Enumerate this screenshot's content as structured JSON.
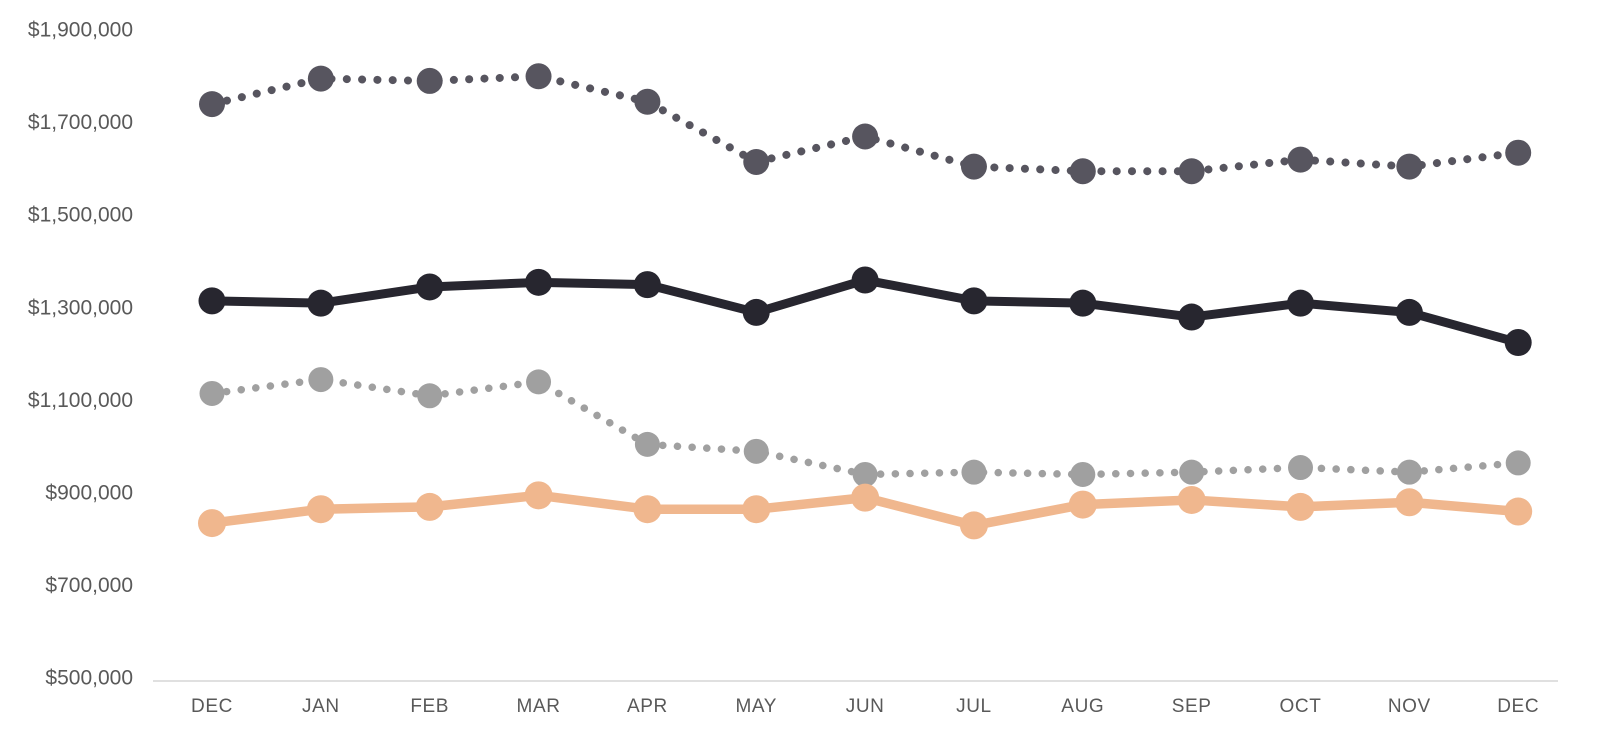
{
  "page": {
    "background_color": "#FFFFFF"
  },
  "axis_style": {
    "axis_line_color": "#D6D6D6",
    "label_color": "#595959"
  },
  "chart_data": {
    "type": "line",
    "title": "",
    "xlabel": "",
    "ylabel": "",
    "grid": false,
    "legend": "none",
    "ylim": [
      500000,
      1900000
    ],
    "y_tick_step": 200000,
    "y_tick_labels": [
      "$1,900,000",
      "$1,700,000",
      "$1,500,000",
      "$1,300,000",
      "$1,100,000",
      "$900,000",
      "$700,000",
      "$500,000"
    ],
    "categories": [
      "DEC",
      "JAN",
      "FEB",
      "MAR",
      "APR",
      "MAY",
      "JUN",
      "JUL",
      "AUG",
      "SEP",
      "OCT",
      "NOV",
      "DEC"
    ],
    "series": [
      {
        "id": "dotted-dark",
        "color": "#57555F",
        "line_style": "dotted",
        "marker": "circle",
        "values": [
          1740000,
          1795000,
          1790000,
          1800000,
          1745000,
          1615000,
          1670000,
          1605000,
          1595000,
          1595000,
          1620000,
          1605000,
          1635000
        ]
      },
      {
        "id": "solid-black",
        "color": "#27262F",
        "line_style": "solid",
        "marker": "circle",
        "values": [
          1315000,
          1310000,
          1345000,
          1355000,
          1350000,
          1290000,
          1360000,
          1315000,
          1310000,
          1280000,
          1310000,
          1290000,
          1225000
        ]
      },
      {
        "id": "dotted-gray",
        "color": "#A0A0A0",
        "line_style": "dotted",
        "marker": "circle",
        "values": [
          1115000,
          1145000,
          1110000,
          1140000,
          1005000,
          990000,
          940000,
          945000,
          940000,
          945000,
          955000,
          945000,
          965000
        ]
      },
      {
        "id": "solid-peach",
        "color": "#F0B78E",
        "line_style": "solid",
        "marker": "circle",
        "values": [
          835000,
          865000,
          870000,
          895000,
          865000,
          865000,
          890000,
          830000,
          875000,
          885000,
          870000,
          880000,
          860000
        ]
      }
    ]
  }
}
